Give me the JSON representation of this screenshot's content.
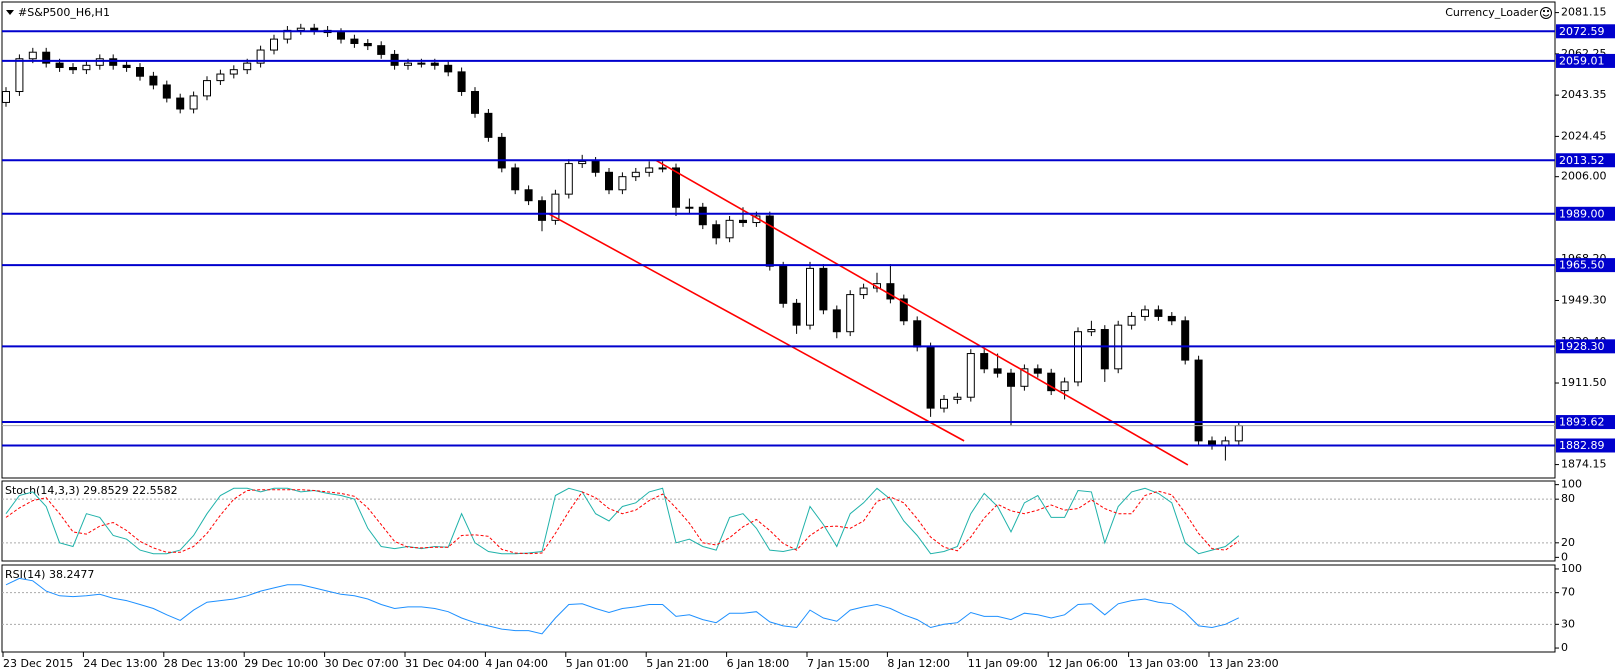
{
  "chart_data": [
    {
      "type": "candlestick",
      "title": "#S&P500_H6,H1",
      "annotation": "Currency_Loader",
      "categories": [
        "23 Dec 2015",
        null,
        null,
        null,
        null,
        null,
        "24 Dec 13:00",
        null,
        null,
        null,
        null,
        null,
        "28 Dec 13:00",
        null,
        null,
        null,
        null,
        null,
        "29 Dec 10:00",
        null,
        null,
        null,
        null,
        null,
        "30 Dec 07:00",
        null,
        null,
        null,
        null,
        null,
        "31 Dec 04:00",
        null,
        null,
        null,
        null,
        null,
        "4 Jan 04:00",
        null,
        null,
        null,
        null,
        null,
        "5 Jan 01:00",
        null,
        null,
        null,
        null,
        null,
        "5 Jan 21:00",
        null,
        null,
        null,
        null,
        null,
        "6 Jan 18:00",
        null,
        null,
        null,
        null,
        null,
        "7 Jan 15:00",
        null,
        null,
        null,
        null,
        null,
        "8 Jan 12:00",
        null,
        null,
        null,
        null,
        null,
        "11 Jan 09:00",
        null,
        null,
        null,
        null,
        null,
        "12 Jan 06:00",
        null,
        null,
        null,
        null,
        null,
        "13 Jan 03:00",
        null,
        null,
        null,
        null,
        null,
        "13 Jan 23:00",
        null,
        null
      ],
      "open": [
        2040,
        2045,
        2060,
        2063,
        2058,
        2056,
        2055,
        2057,
        2060,
        2057,
        2056,
        2052,
        2048,
        2042,
        2037,
        2043,
        2050,
        2053,
        2055,
        2058,
        2064,
        2069,
        2073,
        2074,
        2073,
        2072,
        2069,
        2067,
        2066,
        2062,
        2057,
        2058,
        2058,
        2057,
        2054,
        2045,
        2035,
        2024,
        2010,
        2000,
        1995,
        1986,
        1998,
        2012,
        2013,
        2008,
        2000,
        2006,
        2008,
        2010,
        2010,
        1992,
        1992,
        1984,
        1978,
        1986,
        1985,
        1988,
        1965,
        1948,
        1938,
        1964,
        1945,
        1935,
        1952,
        1955,
        1957,
        1950,
        1940,
        1928,
        1900,
        1904,
        1905,
        1925,
        1918,
        1916,
        1910,
        1918,
        1916,
        1908,
        1912,
        1935,
        1936,
        1918,
        1938,
        1942,
        1945,
        1942,
        1940,
        1922,
        1885,
        1883,
        1885
      ],
      "high": [
        2047,
        2062,
        2065,
        2065,
        2060,
        2058,
        2059,
        2062,
        2062,
        2059,
        2058,
        2054,
        2050,
        2044,
        2045,
        2052,
        2055,
        2057,
        2060,
        2066,
        2071,
        2075,
        2076,
        2076,
        2075,
        2074,
        2071,
        2069,
        2068,
        2064,
        2060,
        2060,
        2060,
        2059,
        2056,
        2047,
        2037,
        2026,
        2012,
        2002,
        1997,
        2000,
        2014,
        2016,
        2015,
        2010,
        2008,
        2010,
        2013,
        2013,
        2012,
        1996,
        1994,
        1986,
        1988,
        1992,
        1990,
        1990,
        1967,
        1950,
        1967,
        1966,
        1947,
        1954,
        1957,
        1962,
        1966,
        1952,
        1942,
        1930,
        1906,
        1907,
        1927,
        1927,
        1925,
        1918,
        1920,
        1920,
        1918,
        1914,
        1937,
        1940,
        1938,
        1940,
        1944,
        1947,
        1947,
        1944,
        1942,
        1924,
        1887,
        1887,
        1894
      ],
      "low": [
        2038,
        2043,
        2058,
        2056,
        2054,
        2053,
        2053,
        2055,
        2055,
        2054,
        2050,
        2046,
        2040,
        2035,
        2035,
        2041,
        2048,
        2051,
        2053,
        2056,
        2062,
        2067,
        2071,
        2071,
        2070,
        2067,
        2065,
        2064,
        2060,
        2055,
        2055,
        2056,
        2055,
        2052,
        2043,
        2033,
        2022,
        2008,
        1998,
        1993,
        1981,
        1984,
        1996,
        2010,
        2006,
        1998,
        1998,
        2004,
        2006,
        2008,
        1988,
        1989,
        1982,
        1975,
        1976,
        1983,
        1983,
        1963,
        1946,
        1934,
        1936,
        1943,
        1932,
        1933,
        1950,
        1953,
        1948,
        1938,
        1926,
        1896,
        1898,
        1902,
        1903,
        1916,
        1914,
        1892,
        1908,
        1914,
        1906,
        1904,
        1910,
        1933,
        1912,
        1916,
        1936,
        1940,
        1940,
        1938,
        1920,
        1883,
        1881,
        1876,
        1883
      ],
      "close": [
        2045,
        2060,
        2063,
        2058,
        2056,
        2055,
        2057,
        2060,
        2057,
        2056,
        2052,
        2048,
        2042,
        2037,
        2043,
        2050,
        2053,
        2055,
        2058,
        2064,
        2069,
        2073,
        2074,
        2073,
        2072,
        2069,
        2067,
        2066,
        2062,
        2057,
        2058,
        2058,
        2057,
        2054,
        2045,
        2035,
        2024,
        2010,
        2000,
        1995,
        1986,
        1998,
        2012,
        2013,
        2008,
        2000,
        2006,
        2008,
        2010,
        2010,
        1992,
        1992,
        1984,
        1978,
        1986,
        1985,
        1988,
        1965,
        1948,
        1938,
        1964,
        1945,
        1935,
        1952,
        1955,
        1957,
        1950,
        1940,
        1928,
        1900,
        1904,
        1905,
        1925,
        1918,
        1916,
        1910,
        1918,
        1916,
        1908,
        1912,
        1935,
        1936,
        1918,
        1938,
        1942,
        1945,
        1942,
        1940,
        1922,
        1885,
        1883,
        1885,
        1892
      ],
      "ylim": [
        1868,
        2086
      ],
      "yticks": [
        2081.15,
        2062.25,
        2043.35,
        2024.45,
        {
          "value": 2006,
          "label": "2006.00"
        },
        {
          "value": 1968.2,
          "label": "1968.20"
        },
        {
          "value": 1949.3,
          "label": "1949.30"
        },
        {
          "value": 1930.4,
          "label": "1930.40"
        },
        {
          "value": 1911.5,
          "label": "1911.50"
        },
        1874.15
      ],
      "levels": [
        2072.59,
        2059.01,
        2013.52,
        {
          "value": 1989,
          "label": "1989.00"
        },
        {
          "value": 1965.5,
          "label": "1965.50"
        },
        {
          "value": 1928.3,
          "label": "1928.30"
        },
        1893.62,
        1882.89
      ],
      "level_color": "#0000cd",
      "trendlines": [
        {
          "color": "#ff0000",
          "values": [
            2013.52,
            1874
          ]
        },
        {
          "color": "#ff0000",
          "values": [
            1989,
            1885
          ]
        }
      ]
    },
    {
      "type": "line",
      "title": "Stoch(14,3,3) 29.8529 22.5582",
      "ylim": [
        -5,
        105
      ],
      "yticks": [
        100,
        80,
        20,
        0
      ],
      "series": [
        {
          "color": "#20b2aa",
          "values": [
            60,
            85,
            90,
            70,
            20,
            15,
            60,
            55,
            30,
            25,
            10,
            5,
            5,
            10,
            30,
            60,
            85,
            95,
            95,
            90,
            95,
            95,
            90,
            92,
            88,
            85,
            80,
            40,
            15,
            12,
            15,
            12,
            15,
            14,
            60,
            20,
            8,
            5,
            5,
            6,
            8,
            85,
            95,
            90,
            60,
            50,
            70,
            75,
            90,
            95,
            20,
            25,
            15,
            10,
            55,
            60,
            40,
            10,
            8,
            12,
            70,
            45,
            15,
            60,
            75,
            95,
            80,
            50,
            30,
            5,
            8,
            15,
            60,
            88,
            70,
            35,
            75,
            85,
            55,
            55,
            92,
            90,
            20,
            70,
            90,
            95,
            88,
            75,
            20,
            5,
            10,
            15,
            29.85
          ]
        },
        {
          "color": "#ff0000",
          "dash": true,
          "values": [
            55,
            68,
            78,
            82,
            60,
            35,
            32,
            43,
            48,
            37,
            22,
            13,
            7,
            7,
            15,
            33,
            58,
            80,
            92,
            93,
            93,
            93,
            93,
            92,
            90,
            88,
            84,
            68,
            45,
            22,
            14,
            13,
            14,
            14,
            30,
            31,
            29,
            11,
            6,
            5,
            6,
            33,
            63,
            90,
            82,
            67,
            60,
            65,
            78,
            87,
            68,
            47,
            20,
            17,
            27,
            42,
            52,
            37,
            19,
            10,
            30,
            42,
            43,
            40,
            50,
            77,
            83,
            75,
            53,
            28,
            14,
            9,
            28,
            54,
            73,
            64,
            60,
            65,
            72,
            65,
            67,
            79,
            67,
            60,
            60,
            85,
            91,
            86,
            61,
            33,
            12,
            10,
            22.56
          ]
        }
      ]
    },
    {
      "type": "line",
      "title": "RSI(14) 38.2477",
      "ylim": [
        -5,
        105
      ],
      "yticks": [
        100,
        70,
        30,
        0
      ],
      "series": [
        {
          "color": "#1e90ff",
          "values": [
            80,
            88,
            85,
            72,
            66,
            65,
            66,
            68,
            63,
            60,
            55,
            50,
            42,
            35,
            48,
            58,
            60,
            62,
            66,
            72,
            76,
            80,
            80,
            76,
            72,
            68,
            66,
            62,
            55,
            50,
            52,
            52,
            50,
            46,
            38,
            32,
            28,
            24,
            22,
            22,
            18,
            38,
            55,
            56,
            50,
            45,
            50,
            52,
            55,
            55,
            40,
            42,
            36,
            32,
            44,
            44,
            46,
            33,
            28,
            26,
            48,
            38,
            34,
            48,
            52,
            55,
            50,
            42,
            36,
            26,
            30,
            32,
            45,
            40,
            40,
            36,
            44,
            42,
            38,
            42,
            55,
            56,
            42,
            56,
            60,
            62,
            58,
            56,
            45,
            28,
            26,
            30,
            38.25
          ]
        }
      ]
    }
  ]
}
